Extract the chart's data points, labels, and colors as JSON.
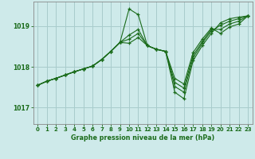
{
  "title": "Graphe pression niveau de la mer (hPa)",
  "background_color": "#ceeaea",
  "grid_color": "#a8cccc",
  "line_color": "#1a6b1a",
  "marker_color": "#1a6b1a",
  "xlim": [
    -0.5,
    23.5
  ],
  "ylim": [
    1016.6,
    1019.6
  ],
  "yticks": [
    1017,
    1018,
    1019
  ],
  "xticks": [
    0,
    1,
    2,
    3,
    4,
    5,
    6,
    7,
    8,
    9,
    10,
    11,
    12,
    13,
    14,
    15,
    16,
    17,
    18,
    19,
    20,
    21,
    22,
    23
  ],
  "lines": [
    [
      1017.55,
      1017.65,
      1017.72,
      1017.8,
      1017.88,
      1017.95,
      1018.02,
      1018.18,
      1018.38,
      1018.6,
      1019.42,
      1019.28,
      1018.52,
      1018.43,
      1018.38,
      1017.38,
      1017.22,
      1018.15,
      1018.52,
      1018.82,
      1019.08,
      1019.18,
      1019.22,
      1019.25
    ],
    [
      1017.55,
      1017.65,
      1017.72,
      1017.8,
      1017.88,
      1017.95,
      1018.02,
      1018.18,
      1018.38,
      1018.6,
      1018.78,
      1018.92,
      1018.52,
      1018.43,
      1018.38,
      1017.52,
      1017.38,
      1018.22,
      1018.58,
      1018.88,
      1019.02,
      1019.12,
      1019.18,
      1019.25
    ],
    [
      1017.55,
      1017.65,
      1017.72,
      1017.8,
      1017.88,
      1017.95,
      1018.02,
      1018.18,
      1018.38,
      1018.6,
      1018.68,
      1018.82,
      1018.52,
      1018.43,
      1018.38,
      1017.62,
      1017.48,
      1018.28,
      1018.62,
      1018.92,
      1018.92,
      1019.05,
      1019.12,
      1019.25
    ],
    [
      1017.55,
      1017.65,
      1017.72,
      1017.8,
      1017.88,
      1017.95,
      1018.02,
      1018.18,
      1018.38,
      1018.6,
      1018.58,
      1018.72,
      1018.52,
      1018.43,
      1018.38,
      1017.72,
      1017.58,
      1018.35,
      1018.68,
      1018.95,
      1018.82,
      1018.98,
      1019.05,
      1019.25
    ]
  ]
}
